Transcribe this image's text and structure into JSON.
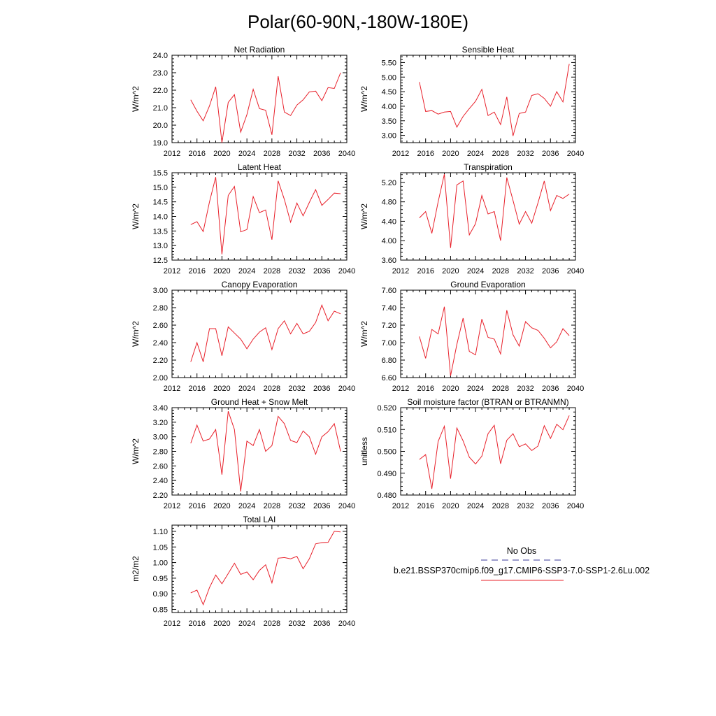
{
  "figure": {
    "title": "Polar(60-90N,-180W-180E)"
  },
  "legend": {
    "obs_label": "No Obs",
    "case_label": "b.e21.BSSP370cmip6.f09_g17.CMIP6-SSP3-7.0-SSP1-2.6Lu.002",
    "obs_color": "#3a3a9a",
    "case_color": "#e8202a"
  },
  "chart_data": [
    {
      "type": "line",
      "title": "Net Radiation",
      "ylabel": "W/m^2",
      "xlim": [
        2012,
        2040
      ],
      "ylim": [
        19.0,
        24.0
      ],
      "xticks": [
        2012,
        2016,
        2020,
        2024,
        2028,
        2032,
        2036,
        2040
      ],
      "yticks": [
        "19.0",
        "20.0",
        "21.0",
        "22.0",
        "23.0",
        "24.0"
      ],
      "x": [
        2015,
        2016,
        2017,
        2018,
        2019,
        2020,
        2021,
        2022,
        2023,
        2024,
        2025,
        2026,
        2027,
        2028,
        2029,
        2030,
        2031,
        2032,
        2033,
        2034,
        2035,
        2036,
        2037,
        2038,
        2039
      ],
      "values": [
        21.45,
        20.8,
        20.25,
        21.1,
        22.2,
        19.0,
        21.3,
        21.75,
        19.6,
        20.6,
        22.05,
        20.95,
        20.85,
        19.45,
        22.8,
        20.75,
        20.55,
        21.15,
        21.45,
        21.9,
        21.95,
        21.4,
        22.15,
        22.1,
        23.0
      ],
      "color": "#e8202a"
    },
    {
      "type": "line",
      "title": "Sensible Heat",
      "ylabel": "W/m^2",
      "xlim": [
        2012,
        2040
      ],
      "ylim": [
        2.75,
        5.75
      ],
      "xticks": [
        2012,
        2016,
        2020,
        2024,
        2028,
        2032,
        2036,
        2040
      ],
      "yticks": [
        "3.00",
        "3.50",
        "4.00",
        "4.50",
        "5.00",
        "5.50"
      ],
      "x": [
        2015,
        2016,
        2017,
        2018,
        2019,
        2020,
        2021,
        2022,
        2023,
        2024,
        2025,
        2026,
        2027,
        2028,
        2029,
        2030,
        2031,
        2032,
        2033,
        2034,
        2035,
        2036,
        2037,
        2038,
        2039
      ],
      "values": [
        4.83,
        3.82,
        3.85,
        3.73,
        3.8,
        3.82,
        3.28,
        3.65,
        3.92,
        4.17,
        4.58,
        3.68,
        3.8,
        3.37,
        4.32,
        2.98,
        3.75,
        3.8,
        4.37,
        4.43,
        4.27,
        4.0,
        4.5,
        4.15,
        5.45
      ],
      "color": "#e8202a"
    },
    {
      "type": "line",
      "title": "Latent Heat",
      "ylabel": "W/m^2",
      "xlim": [
        2012,
        2040
      ],
      "ylim": [
        12.5,
        15.5
      ],
      "xticks": [
        2012,
        2016,
        2020,
        2024,
        2028,
        2032,
        2036,
        2040
      ],
      "yticks": [
        "12.5",
        "13.0",
        "13.5",
        "14.0",
        "14.5",
        "15.0",
        "15.5"
      ],
      "x": [
        2015,
        2016,
        2017,
        2018,
        2019,
        2020,
        2021,
        2022,
        2023,
        2024,
        2025,
        2026,
        2027,
        2028,
        2029,
        2030,
        2031,
        2032,
        2033,
        2034,
        2035,
        2036,
        2037,
        2038,
        2039
      ],
      "values": [
        13.72,
        13.82,
        13.48,
        14.5,
        15.35,
        12.7,
        14.72,
        15.03,
        13.47,
        13.55,
        14.68,
        14.13,
        14.22,
        13.2,
        15.22,
        14.58,
        13.8,
        14.46,
        14.02,
        14.48,
        14.92,
        14.38,
        14.58,
        14.8,
        14.78
      ],
      "color": "#e8202a"
    },
    {
      "type": "line",
      "title": "Transpiration",
      "ylabel": "W/m^2",
      "xlim": [
        2012,
        2040
      ],
      "ylim": [
        3.6,
        5.4
      ],
      "xticks": [
        2012,
        2016,
        2020,
        2024,
        2028,
        2032,
        2036,
        2040
      ],
      "yticks": [
        "3.60",
        "4.00",
        "4.40",
        "4.80",
        "5.20"
      ],
      "x": [
        2015,
        2016,
        2017,
        2018,
        2019,
        2020,
        2021,
        2022,
        2023,
        2024,
        2025,
        2026,
        2027,
        2028,
        2029,
        2030,
        2031,
        2032,
        2033,
        2034,
        2035,
        2036,
        2037,
        2038,
        2039
      ],
      "values": [
        4.47,
        4.6,
        4.15,
        4.8,
        5.37,
        3.85,
        5.15,
        5.23,
        4.12,
        4.35,
        4.93,
        4.55,
        4.6,
        4.0,
        5.3,
        4.83,
        4.34,
        4.6,
        4.36,
        4.78,
        5.23,
        4.62,
        4.93,
        4.87,
        4.96
      ],
      "color": "#e8202a"
    },
    {
      "type": "line",
      "title": "Canopy Evaporation",
      "ylabel": "W/m^2",
      "xlim": [
        2012,
        2040
      ],
      "ylim": [
        2.0,
        3.0
      ],
      "xticks": [
        2012,
        2016,
        2020,
        2024,
        2028,
        2032,
        2036,
        2040
      ],
      "yticks": [
        "2.00",
        "2.20",
        "2.40",
        "2.60",
        "2.80",
        "3.00"
      ],
      "x": [
        2015,
        2016,
        2017,
        2018,
        2019,
        2020,
        2021,
        2022,
        2023,
        2024,
        2025,
        2026,
        2027,
        2028,
        2029,
        2030,
        2031,
        2032,
        2033,
        2034,
        2035,
        2036,
        2037,
        2038,
        2039
      ],
      "values": [
        2.18,
        2.4,
        2.18,
        2.56,
        2.56,
        2.25,
        2.58,
        2.51,
        2.44,
        2.33,
        2.44,
        2.52,
        2.57,
        2.32,
        2.56,
        2.65,
        2.5,
        2.62,
        2.5,
        2.53,
        2.63,
        2.83,
        2.65,
        2.76,
        2.73
      ],
      "color": "#e8202a"
    },
    {
      "type": "line",
      "title": "Ground Evaporation",
      "ylabel": "W/m^2",
      "xlim": [
        2012,
        2040
      ],
      "ylim": [
        6.6,
        7.6
      ],
      "xticks": [
        2012,
        2016,
        2020,
        2024,
        2028,
        2032,
        2036,
        2040
      ],
      "yticks": [
        "6.60",
        "6.80",
        "7.00",
        "7.20",
        "7.40",
        "7.60"
      ],
      "x": [
        2015,
        2016,
        2017,
        2018,
        2019,
        2020,
        2021,
        2022,
        2023,
        2024,
        2025,
        2026,
        2027,
        2028,
        2029,
        2030,
        2031,
        2032,
        2033,
        2034,
        2035,
        2036,
        2037,
        2038,
        2039
      ],
      "values": [
        7.07,
        6.82,
        7.15,
        7.1,
        7.41,
        6.62,
        6.98,
        7.28,
        6.9,
        6.86,
        7.27,
        7.06,
        7.04,
        6.87,
        7.37,
        7.09,
        6.96,
        7.24,
        7.17,
        7.14,
        7.05,
        6.94,
        7.01,
        7.16,
        7.08
      ],
      "color": "#e8202a"
    },
    {
      "type": "line",
      "title": "Ground Heat + Snow Melt",
      "ylabel": "W/m^2",
      "xlim": [
        2012,
        2040
      ],
      "ylim": [
        2.2,
        3.4
      ],
      "xticks": [
        2012,
        2016,
        2020,
        2024,
        2028,
        2032,
        2036,
        2040
      ],
      "yticks": [
        "2.20",
        "2.40",
        "2.60",
        "2.80",
        "3.00",
        "3.20",
        "3.40"
      ],
      "x": [
        2015,
        2016,
        2017,
        2018,
        2019,
        2020,
        2021,
        2022,
        2023,
        2024,
        2025,
        2026,
        2027,
        2028,
        2029,
        2030,
        2031,
        2032,
        2033,
        2034,
        2035,
        2036,
        2037,
        2038,
        2039
      ],
      "values": [
        2.91,
        3.16,
        2.94,
        2.97,
        3.1,
        2.48,
        3.35,
        3.1,
        2.25,
        2.94,
        2.88,
        3.1,
        2.8,
        2.88,
        3.28,
        3.18,
        2.95,
        2.92,
        3.08,
        3.0,
        2.76,
        3.0,
        3.07,
        3.18,
        2.8
      ],
      "color": "#e8202a"
    },
    {
      "type": "line",
      "title": "Soil moisture factor (BTRAN or BTRANMN)",
      "ylabel": "unitless",
      "xlim": [
        2012,
        2040
      ],
      "ylim": [
        0.48,
        0.52
      ],
      "xticks": [
        2012,
        2016,
        2020,
        2024,
        2028,
        2032,
        2036,
        2040
      ],
      "yticks": [
        "0.480",
        "0.490",
        "0.500",
        "0.510",
        "0.520"
      ],
      "x": [
        2015,
        2016,
        2017,
        2018,
        2019,
        2020,
        2021,
        2022,
        2023,
        2024,
        2025,
        2026,
        2027,
        2028,
        2029,
        2030,
        2031,
        2032,
        2033,
        2034,
        2035,
        2036,
        2037,
        2038,
        2039
      ],
      "values": [
        0.4963,
        0.4985,
        0.4828,
        0.5045,
        0.5115,
        0.4875,
        0.5107,
        0.5048,
        0.4973,
        0.4942,
        0.4978,
        0.5081,
        0.5119,
        0.4943,
        0.5051,
        0.5081,
        0.5021,
        0.5034,
        0.5004,
        0.5024,
        0.5117,
        0.5059,
        0.5124,
        0.5099,
        0.5164
      ],
      "color": "#e8202a"
    },
    {
      "type": "line",
      "title": "Total LAI",
      "ylabel": "m2/m2",
      "xlim": [
        2012,
        2040
      ],
      "ylim": [
        0.84,
        1.12
      ],
      "xticks": [
        2012,
        2016,
        2020,
        2024,
        2028,
        2032,
        2036,
        2040
      ],
      "yticks": [
        "0.85",
        "0.90",
        "0.95",
        "1.00",
        "1.05",
        "1.10"
      ],
      "x": [
        2015,
        2016,
        2017,
        2018,
        2019,
        2020,
        2021,
        2022,
        2023,
        2024,
        2025,
        2026,
        2027,
        2028,
        2029,
        2030,
        2031,
        2032,
        2033,
        2034,
        2035,
        2036,
        2037,
        2038,
        2039
      ],
      "values": [
        0.903,
        0.912,
        0.865,
        0.92,
        0.96,
        0.932,
        0.965,
        0.998,
        0.962,
        0.97,
        0.945,
        0.975,
        0.993,
        0.935,
        1.014,
        1.016,
        1.012,
        1.02,
        0.98,
        1.012,
        1.06,
        1.064,
        1.065,
        1.1,
        1.098
      ],
      "color": "#e8202a"
    }
  ]
}
